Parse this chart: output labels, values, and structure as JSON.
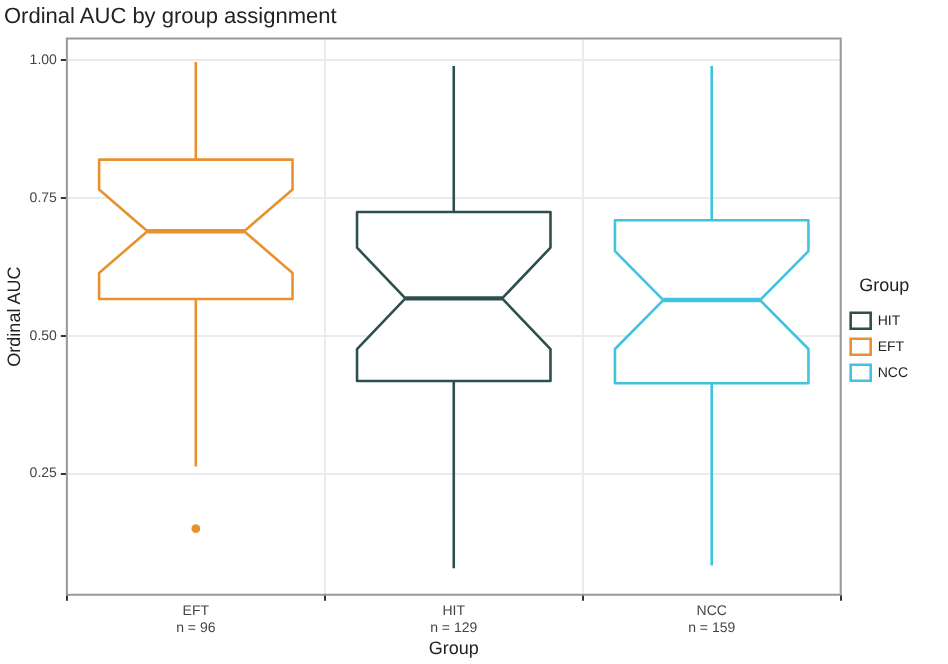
{
  "chart_data": {
    "type": "box",
    "title": "Ordinal AUC by group assignment",
    "xlabel": "Group",
    "ylabel": "Ordinal AUC",
    "legend_title": "Group",
    "categories": [
      "EFT\nn = 96",
      "HIT\nn = 129",
      "NCC\nn = 159"
    ],
    "series": [
      {
        "name": "HIT",
        "color": "#2f4f4f",
        "boxes": [
          null,
          {
            "low": 0.078,
            "q1": 0.418,
            "median": 0.568,
            "q3": 0.725,
            "high": 0.99
          },
          null
        ]
      },
      {
        "name": "EFT",
        "color": "#e8912f",
        "boxes": [
          {
            "low": 0.263,
            "q1": 0.567,
            "median": 0.69,
            "q3": 0.82,
            "high": 0.997,
            "outliers": [
              0.15
            ]
          },
          null,
          null
        ]
      },
      {
        "name": "NCC",
        "color": "#40c4de",
        "boxes": [
          null,
          null,
          {
            "low": 0.083,
            "q1": 0.414,
            "median": 0.565,
            "q3": 0.71,
            "high": 0.99
          }
        ]
      }
    ],
    "ylim": [
      0.03,
      1.04
    ],
    "yticks": [
      {
        "value": 0.25,
        "label": "0.25"
      },
      {
        "value": 0.5,
        "label": "0.50"
      },
      {
        "value": 0.75,
        "label": "0.75"
      },
      {
        "value": 1,
        "label": "1.00"
      }
    ],
    "grid": true,
    "legend": "right"
  }
}
